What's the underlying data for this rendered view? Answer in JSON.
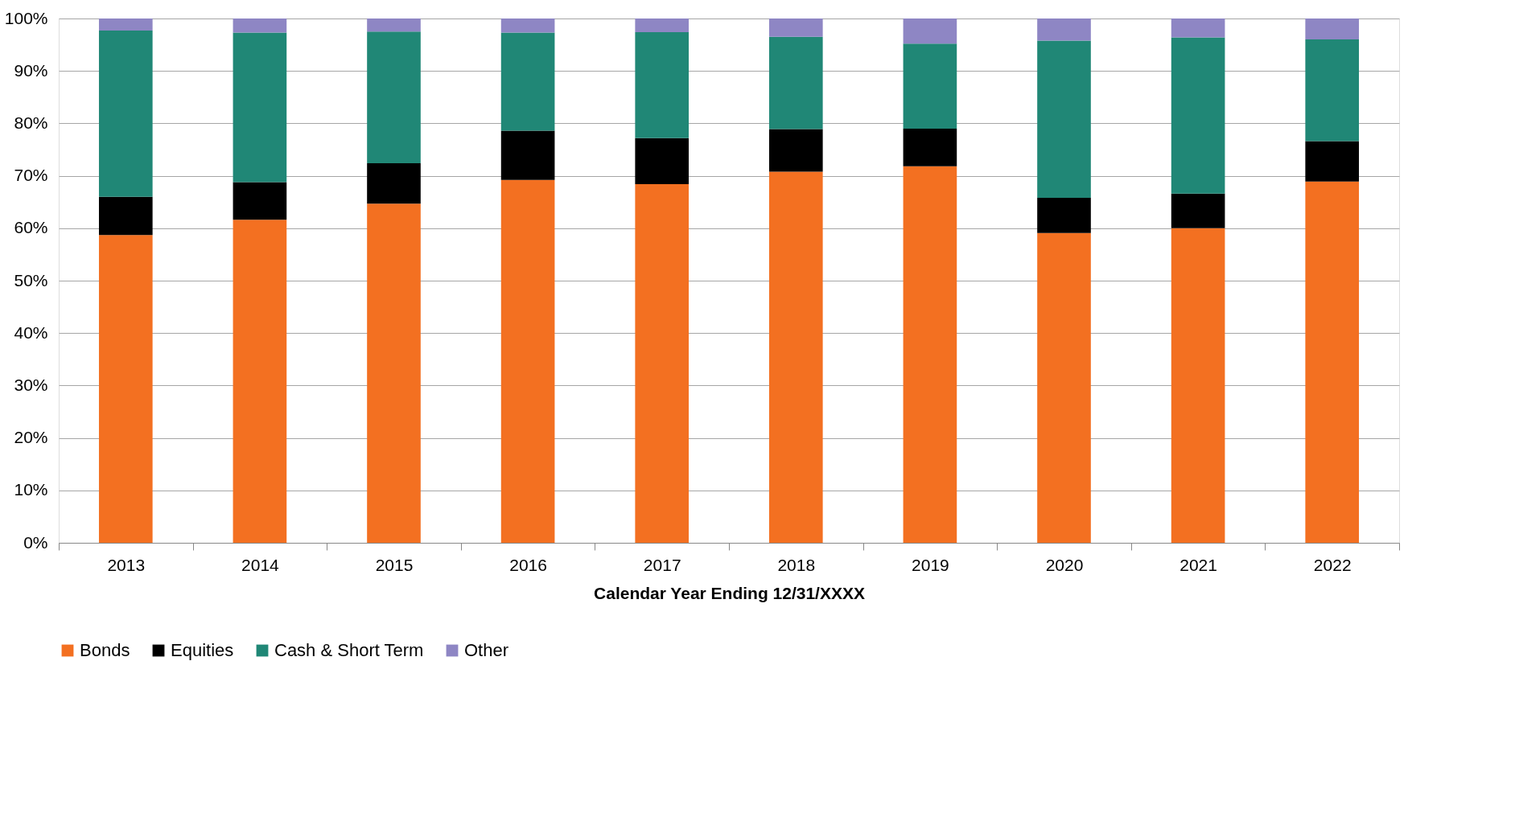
{
  "chart_data": {
    "type": "bar",
    "stacked": true,
    "xlabel": "Calendar Year Ending 12/31/XXXX",
    "categories": [
      "2013",
      "2014",
      "2015",
      "2016",
      "2017",
      "2018",
      "2019",
      "2020",
      "2021",
      "2022"
    ],
    "series": [
      {
        "name": "Bonds",
        "color": "#f37021",
        "values": [
          58.7,
          61.6,
          64.7,
          69.2,
          68.4,
          70.8,
          71.8,
          59.1,
          60.0,
          68.9
        ]
      },
      {
        "name": "Equities",
        "color": "#000000",
        "values": [
          7.3,
          7.2,
          7.7,
          9.4,
          8.8,
          8.1,
          7.2,
          6.7,
          6.6,
          7.7
        ]
      },
      {
        "name": "Cash & Short Term",
        "color": "#208776",
        "values": [
          31.7,
          28.5,
          25.1,
          18.7,
          20.2,
          17.6,
          16.2,
          30.0,
          29.8,
          19.4
        ]
      },
      {
        "name": "Other",
        "color": "#8e86c4",
        "values": [
          2.3,
          2.7,
          2.5,
          2.7,
          2.6,
          3.5,
          4.8,
          4.2,
          3.6,
          4.0
        ]
      }
    ],
    "ylim": [
      0,
      100
    ],
    "yticks": [
      {
        "value": 0,
        "label": "0%"
      },
      {
        "value": 10,
        "label": "10%"
      },
      {
        "value": 20,
        "label": "20%"
      },
      {
        "value": 30,
        "label": "30%"
      },
      {
        "value": 40,
        "label": "40%"
      },
      {
        "value": 50,
        "label": "50%"
      },
      {
        "value": 60,
        "label": "60%"
      },
      {
        "value": 70,
        "label": "70%"
      },
      {
        "value": 80,
        "label": "80%"
      },
      {
        "value": 90,
        "label": "90%"
      },
      {
        "value": 100,
        "label": "100%"
      }
    ],
    "grid": "y",
    "legend": "bottom"
  }
}
